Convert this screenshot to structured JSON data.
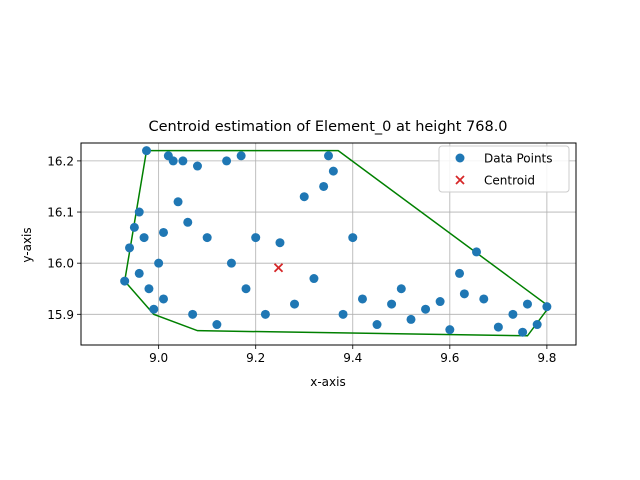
{
  "chart_data": {
    "type": "scatter",
    "title": "Centroid estimation of Element_0 at height 768.0",
    "xlabel": "x-axis",
    "ylabel": "y-axis",
    "xlim": [
      8.84,
      9.86
    ],
    "ylim": [
      15.84,
      16.235
    ],
    "xticks": [
      9.0,
      9.2,
      9.4,
      9.6,
      9.8
    ],
    "xtick_labels": [
      "9.0",
      "9.2",
      "9.4",
      "9.6",
      "9.8"
    ],
    "yticks": [
      15.9,
      16.0,
      16.1,
      16.2
    ],
    "ytick_labels": [
      "15.9",
      "16.0",
      "16.1",
      "16.2"
    ],
    "grid": true,
    "legend_position": "top-right",
    "series": [
      {
        "name": "Data Points",
        "marker": "circle",
        "color": "#1f77b4",
        "points": [
          [
            8.93,
            15.965
          ],
          [
            8.94,
            16.03
          ],
          [
            8.95,
            16.07
          ],
          [
            8.96,
            15.98
          ],
          [
            8.96,
            16.1
          ],
          [
            8.97,
            16.05
          ],
          [
            8.975,
            16.22
          ],
          [
            8.98,
            15.95
          ],
          [
            8.99,
            15.91
          ],
          [
            9.0,
            16.0
          ],
          [
            9.01,
            16.06
          ],
          [
            9.01,
            15.93
          ],
          [
            9.02,
            16.21
          ],
          [
            9.03,
            16.2
          ],
          [
            9.04,
            16.12
          ],
          [
            9.05,
            16.2
          ],
          [
            9.06,
            16.08
          ],
          [
            9.07,
            15.9
          ],
          [
            9.08,
            16.19
          ],
          [
            9.1,
            16.05
          ],
          [
            9.12,
            15.88
          ],
          [
            9.14,
            16.2
          ],
          [
            9.15,
            16.0
          ],
          [
            9.17,
            16.21
          ],
          [
            9.18,
            15.95
          ],
          [
            9.2,
            16.05
          ],
          [
            9.22,
            15.9
          ],
          [
            9.25,
            16.04
          ],
          [
            9.28,
            15.92
          ],
          [
            9.3,
            16.13
          ],
          [
            9.32,
            15.97
          ],
          [
            9.34,
            16.15
          ],
          [
            9.35,
            16.21
          ],
          [
            9.36,
            16.18
          ],
          [
            9.38,
            15.9
          ],
          [
            9.4,
            16.05
          ],
          [
            9.42,
            15.93
          ],
          [
            9.45,
            15.88
          ],
          [
            9.48,
            15.92
          ],
          [
            9.5,
            15.95
          ],
          [
            9.52,
            15.89
          ],
          [
            9.55,
            15.91
          ],
          [
            9.58,
            15.925
          ],
          [
            9.6,
            15.87
          ],
          [
            9.62,
            15.98
          ],
          [
            9.63,
            15.94
          ],
          [
            9.655,
            16.022
          ],
          [
            9.67,
            15.93
          ],
          [
            9.7,
            15.875
          ],
          [
            9.73,
            15.9
          ],
          [
            9.75,
            15.865
          ],
          [
            9.76,
            15.92
          ],
          [
            9.78,
            15.88
          ],
          [
            9.8,
            15.915
          ]
        ]
      },
      {
        "name": "Centroid",
        "marker": "x",
        "color": "#d62728",
        "points": [
          [
            9.247,
            15.991
          ]
        ]
      }
    ],
    "hull": {
      "color": "#008000",
      "points": [
        [
          8.93,
          15.965
        ],
        [
          8.975,
          16.22
        ],
        [
          9.37,
          16.22
        ],
        [
          9.805,
          15.915
        ],
        [
          9.76,
          15.858
        ],
        [
          9.08,
          15.868
        ],
        [
          8.99,
          15.9
        ],
        [
          8.93,
          15.965
        ]
      ]
    }
  }
}
